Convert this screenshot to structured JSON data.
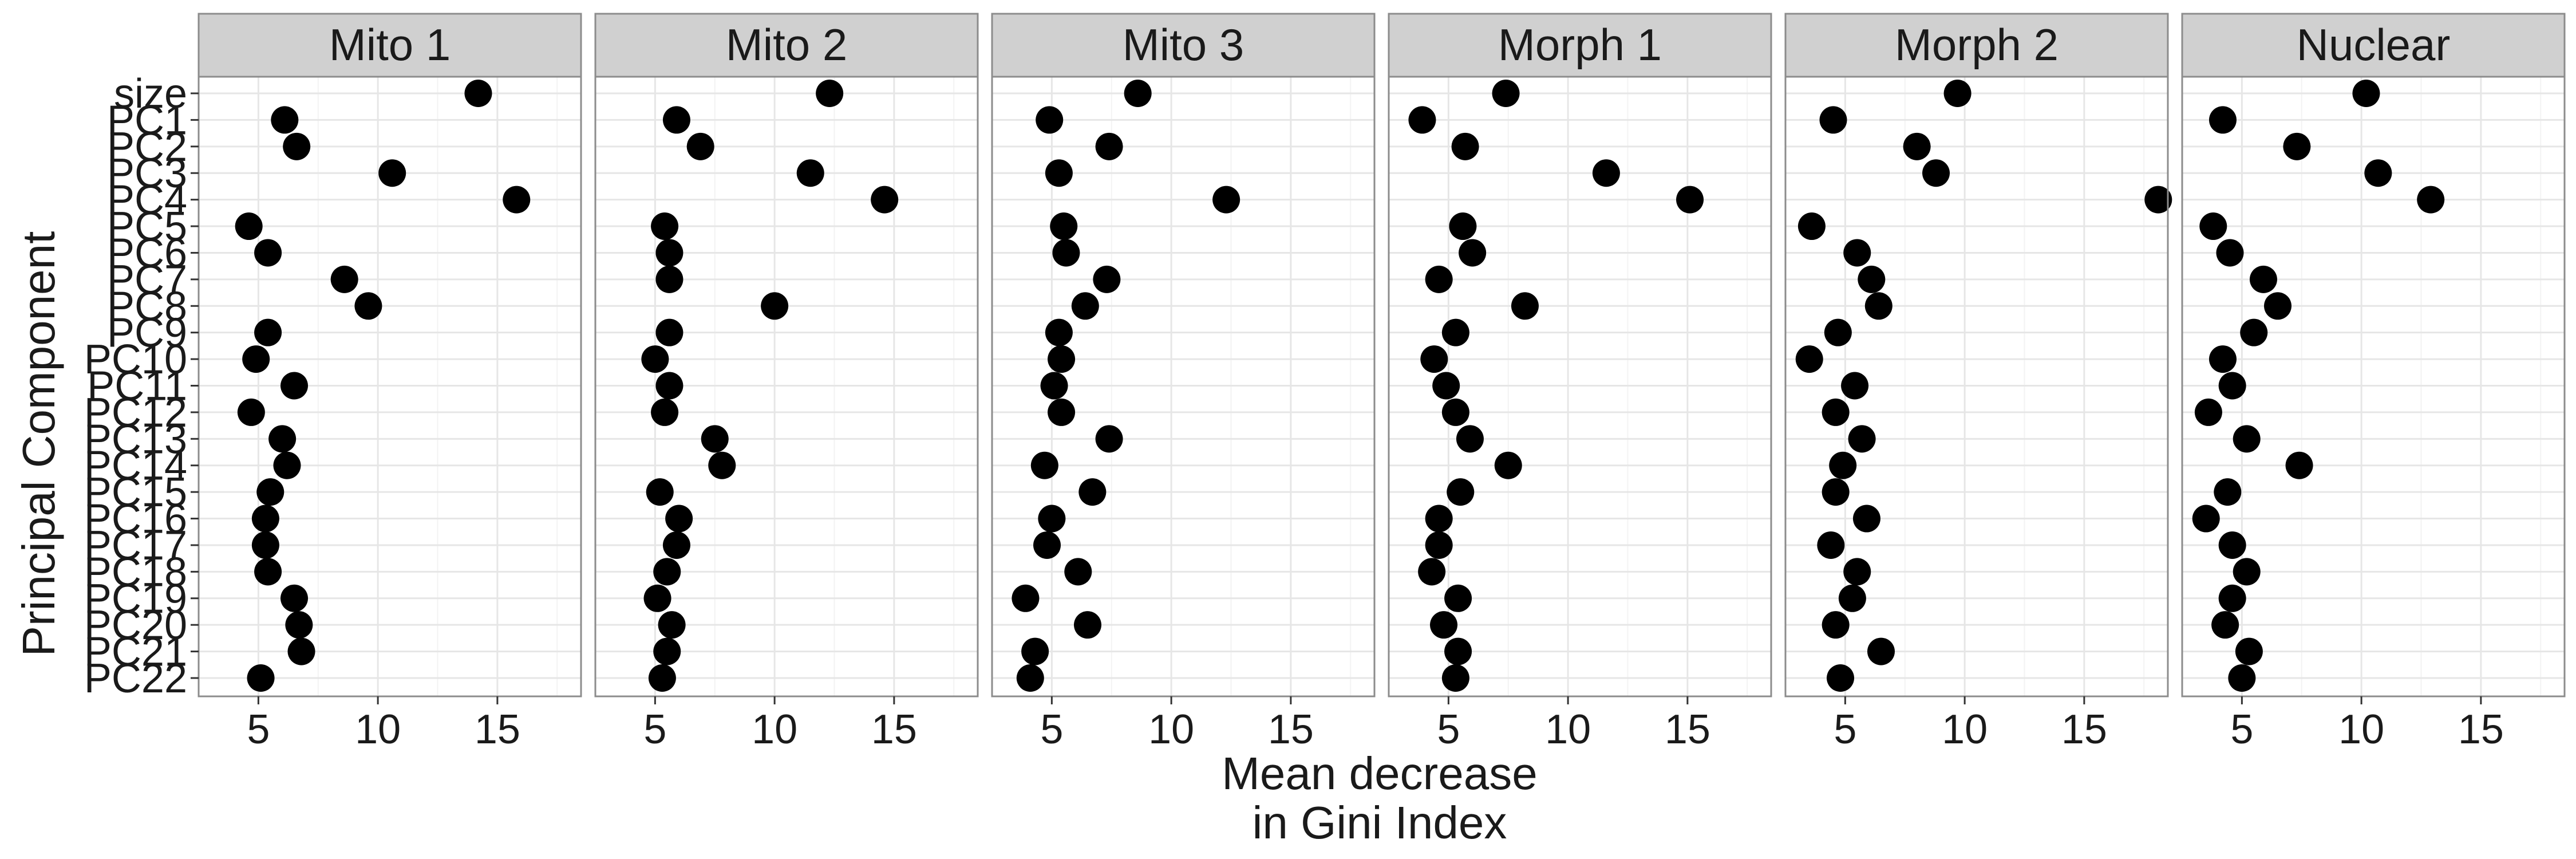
{
  "chart_data": {
    "type": "scatter",
    "layout": "faceted",
    "xlabel": [
      "Mean decrease",
      "in Gini Index"
    ],
    "ylabel": "Principal Component",
    "xlim": [
      2.5,
      18.5
    ],
    "xticks": [
      5,
      10,
      15
    ],
    "grid": true,
    "legend": "none",
    "colors": {
      "point": "#000000",
      "panel_border": "#8c8c8c",
      "strip_fill": "#d0d0d0",
      "grid_major": "#e6e6e6",
      "grid_minor": "#f3f3f3"
    },
    "categories": [
      "size",
      "PC1",
      "PC2",
      "PC3",
      "PC4",
      "PC5",
      "PC6",
      "PC7",
      "PC8",
      "PC9",
      "PC10",
      "PC11",
      "PC12",
      "PC13",
      "PC14",
      "PC15",
      "PC16",
      "PC17",
      "PC18",
      "PC19",
      "PC20",
      "PC21",
      "PC22"
    ],
    "facets": [
      {
        "name": "Mito 1",
        "values": [
          14.2,
          6.1,
          6.6,
          10.6,
          15.8,
          4.6,
          5.4,
          8.6,
          9.6,
          5.4,
          4.9,
          6.5,
          4.7,
          6.0,
          6.2,
          5.5,
          5.3,
          5.3,
          5.4,
          6.5,
          6.7,
          6.8,
          5.1
        ]
      },
      {
        "name": "Mito 2",
        "values": [
          12.3,
          5.9,
          6.9,
          11.5,
          14.6,
          5.4,
          5.6,
          5.6,
          10.0,
          5.6,
          5.0,
          5.6,
          5.4,
          7.5,
          7.8,
          5.2,
          6.0,
          5.9,
          5.5,
          5.1,
          5.7,
          5.5,
          5.3
        ]
      },
      {
        "name": "Mito 3",
        "values": [
          8.6,
          4.9,
          7.4,
          5.3,
          12.3,
          5.5,
          5.6,
          7.3,
          6.4,
          5.3,
          5.4,
          5.1,
          5.4,
          7.4,
          4.7,
          6.7,
          5.0,
          4.8,
          6.1,
          3.9,
          6.5,
          4.3,
          4.1
        ]
      },
      {
        "name": "Morph 1",
        "values": [
          7.4,
          3.9,
          5.7,
          11.6,
          15.1,
          5.6,
          6.0,
          4.6,
          8.2,
          5.3,
          4.4,
          4.9,
          5.3,
          5.9,
          7.5,
          5.5,
          4.6,
          4.6,
          4.3,
          5.4,
          4.8,
          5.4,
          5.3
        ]
      },
      {
        "name": "Morph 2",
        "values": [
          9.7,
          4.5,
          8.0,
          8.8,
          18.1,
          3.6,
          5.5,
          6.1,
          6.4,
          4.7,
          3.5,
          5.4,
          4.6,
          5.7,
          4.9,
          4.6,
          5.9,
          4.4,
          5.5,
          5.3,
          4.6,
          6.5,
          4.8
        ]
      },
      {
        "name": "Nuclear",
        "values": [
          10.2,
          4.2,
          7.3,
          10.7,
          12.9,
          3.8,
          4.5,
          5.9,
          6.5,
          5.5,
          4.2,
          4.6,
          3.6,
          5.2,
          7.4,
          4.4,
          3.5,
          4.6,
          5.2,
          4.6,
          4.3,
          5.3,
          5.0
        ]
      }
    ]
  }
}
